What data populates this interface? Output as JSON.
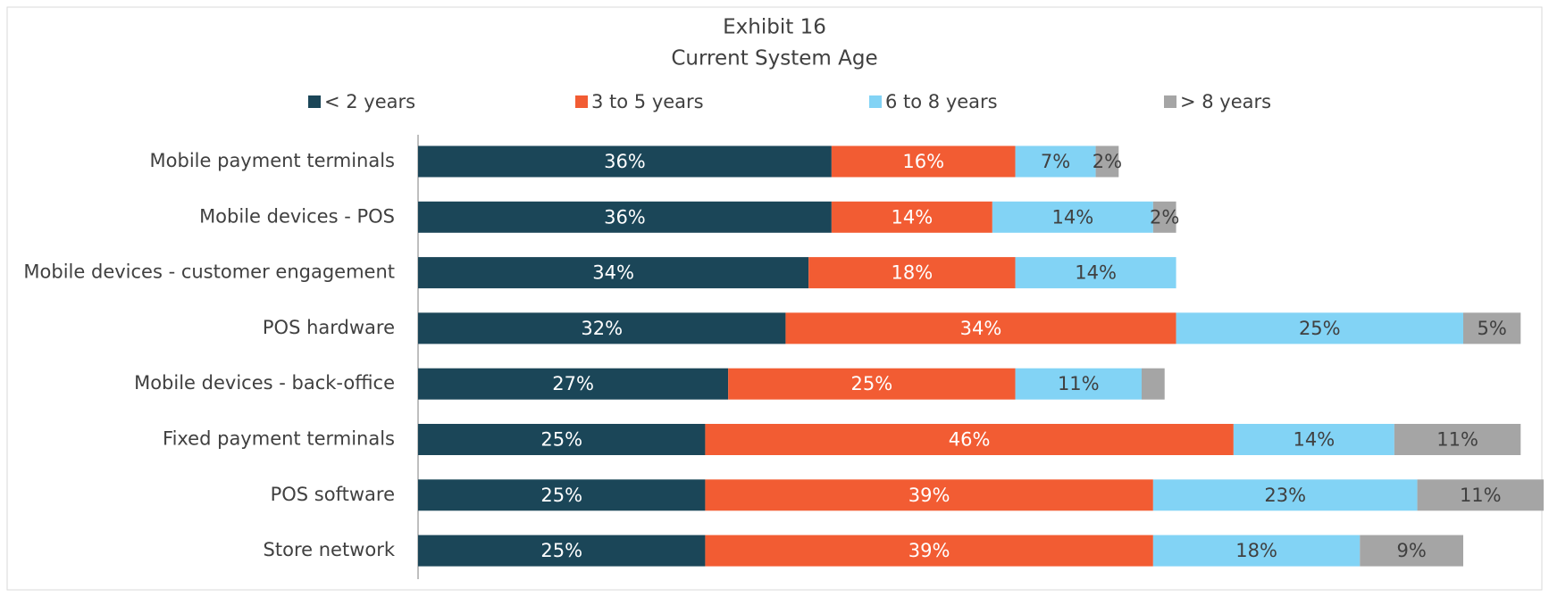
{
  "chart_data": {
    "type": "stacked-barh",
    "title": "Exhibit 16",
    "subtitle": "Current System Age",
    "categories": [
      "Mobile payment terminals",
      "Mobile devices - POS",
      "Mobile devices - customer engagement",
      "POS hardware",
      "Mobile devices - back-office",
      "Fixed payment terminals",
      "POS software",
      "Store network"
    ],
    "series": [
      {
        "name": "< 2 years",
        "color": "#1b4658",
        "values": [
          36,
          36,
          34,
          32,
          27,
          25,
          25,
          25
        ],
        "value_labels": [
          "36%",
          "36%",
          "34%",
          "32%",
          "27%",
          "25%",
          "25%",
          "25%"
        ]
      },
      {
        "name": "3 to 5 years",
        "color": "#f25c33",
        "values": [
          16,
          14,
          18,
          34,
          25,
          46,
          39,
          39
        ],
        "value_labels": [
          "16%",
          "14%",
          "18%",
          "34%",
          "25%",
          "46%",
          "39%",
          "39%"
        ]
      },
      {
        "name": "6 to 8 years",
        "color": "#82d3f5",
        "values": [
          7,
          14,
          14,
          25,
          11,
          14,
          23,
          18
        ],
        "value_labels": [
          "7%",
          "14%",
          "14%",
          "25%",
          "11%",
          "14%",
          "23%",
          "18%"
        ]
      },
      {
        "name": "> 8 years",
        "color": "#a5a5a5",
        "values": [
          2,
          2,
          0,
          5,
          2,
          11,
          11,
          9
        ],
        "value_labels": [
          "2%",
          "2%",
          null,
          "5%",
          null,
          "11%",
          "11%",
          "9%"
        ]
      }
    ],
    "legend": "top"
  }
}
